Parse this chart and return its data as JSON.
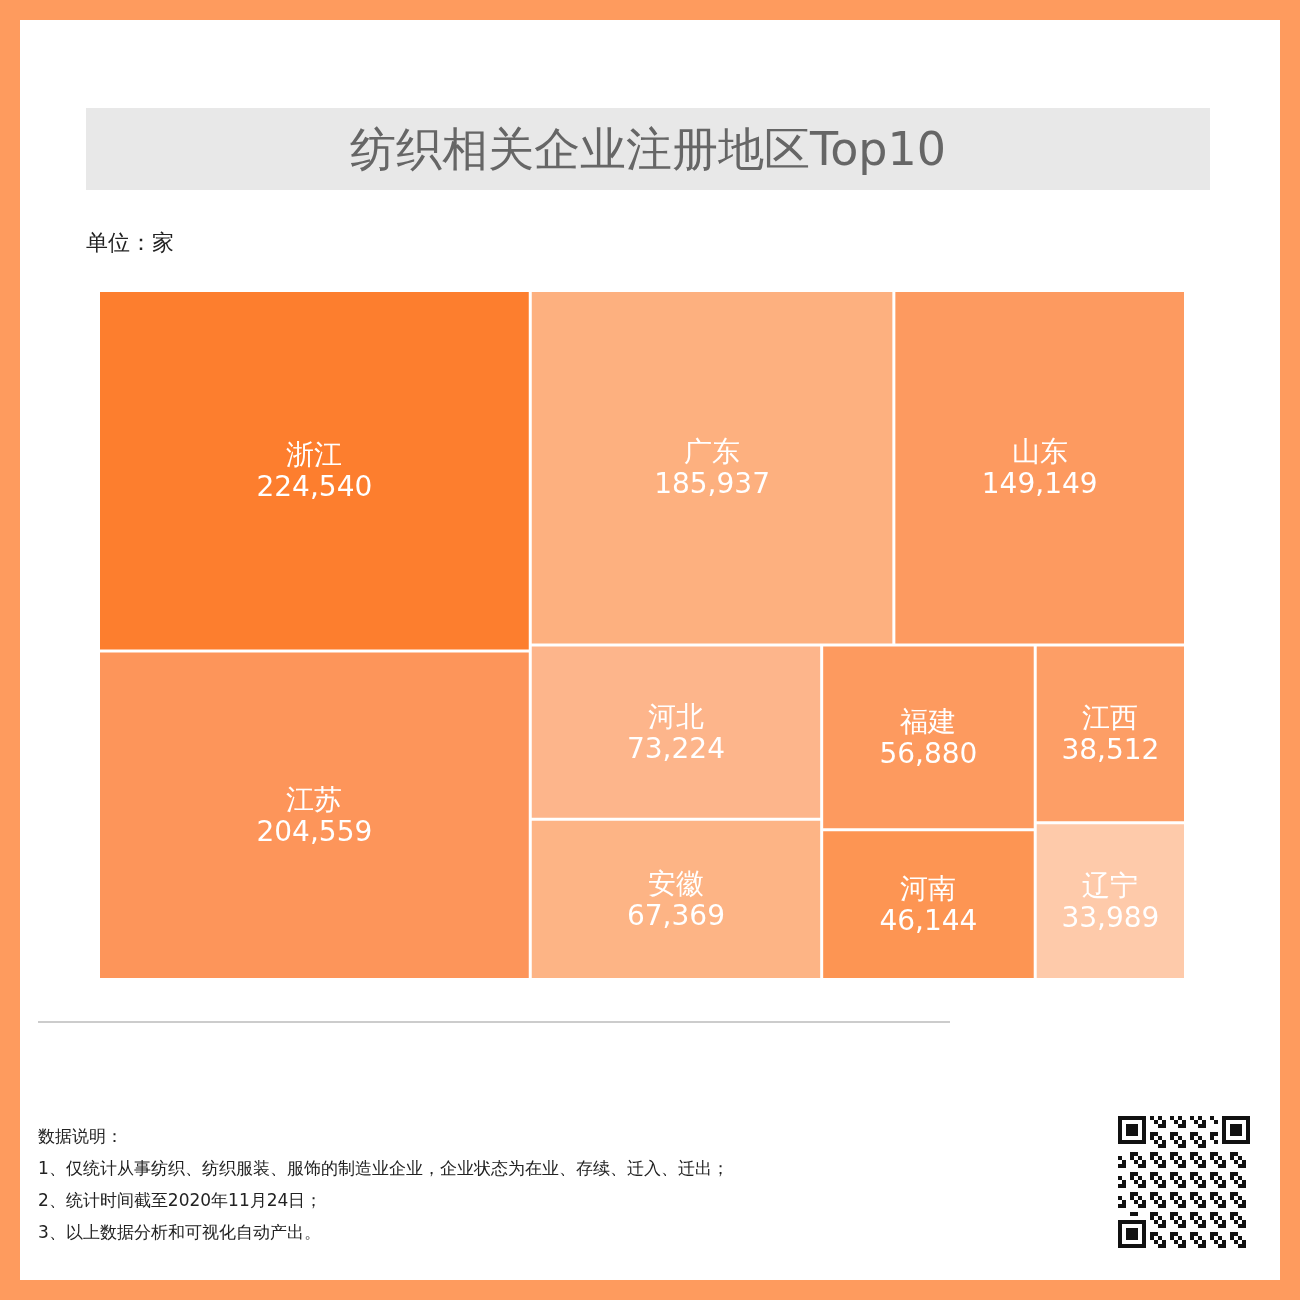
{
  "chart_data": {
    "type": "other",
    "title": "纺织相关企业注册地区Top10",
    "subtitle": "单位：家",
    "categories": [
      "浙江",
      "江苏",
      "广东",
      "山东",
      "河北",
      "安徽",
      "福建",
      "河南",
      "江西",
      "辽宁"
    ],
    "values": [
      224540,
      204559,
      185937,
      149149,
      73224,
      67369,
      56880,
      46144,
      38512,
      33989
    ],
    "colors": [
      "#fd7e2e",
      "#fd955a",
      "#fdb07f",
      "#fd9a60",
      "#fdb58b",
      "#fdb485",
      "#fd9a5f",
      "#fd9553",
      "#fd9e66",
      "#fecaaa"
    ],
    "value_labels": [
      "224,540",
      "204,559",
      "185,937",
      "149,149",
      "73,224",
      "67,369",
      "56,880",
      "46,144",
      "38,512",
      "33,989"
    ],
    "annotations": [
      "数据说明：",
      "1、仅统计从事纺织、纺织服装、服饰的制造业企业，企业状态为在业、存续、迁入、迁出；",
      "2、统计时间截至2020年11月24日；",
      "3、以上数据分析和可视化自动产出。"
    ]
  }
}
